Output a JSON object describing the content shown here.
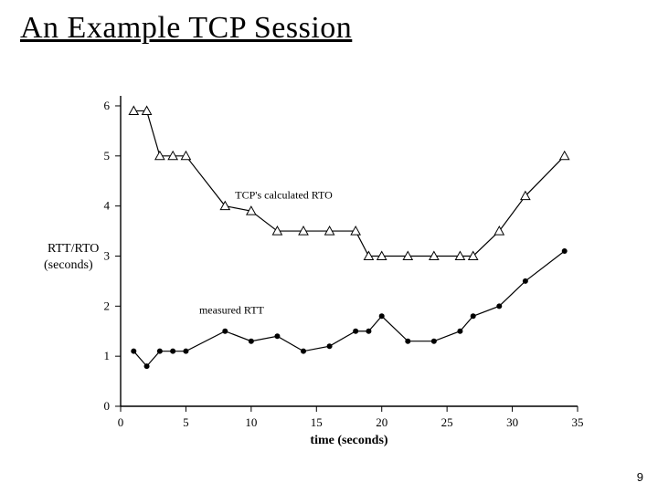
{
  "title": "An Example TCP Session",
  "page_number": "9",
  "chart": {
    "type": "line",
    "background_color": "#ffffff",
    "axis_color": "#000000",
    "line_color": "#000000",
    "line_width": 1.2,
    "xlabel": "time (seconds)",
    "ylabel_line1": "RTT/RTO",
    "ylabel_line2": "(seconds)",
    "label_fontsize": 14,
    "tick_fontsize": 13,
    "xlim": [
      0,
      35
    ],
    "ylim": [
      0,
      6.2
    ],
    "xticks": [
      0,
      5,
      10,
      15,
      20,
      25,
      30,
      35
    ],
    "yticks": [
      0,
      1,
      2,
      3,
      4,
      5,
      6
    ],
    "series": [
      {
        "name": "TCP's calculated RTO",
        "marker": "triangle",
        "marker_size": 5,
        "label_xy": [
          12.5,
          4.15
        ],
        "data": [
          [
            1,
            5.9
          ],
          [
            2,
            5.9
          ],
          [
            3,
            5.0
          ],
          [
            4,
            5.0
          ],
          [
            5,
            5.0
          ],
          [
            8,
            4.0
          ],
          [
            10,
            3.9
          ],
          [
            12,
            3.5
          ],
          [
            14,
            3.5
          ],
          [
            16,
            3.5
          ],
          [
            18,
            3.5
          ],
          [
            19,
            3.0
          ],
          [
            20,
            3.0
          ],
          [
            22,
            3.0
          ],
          [
            24,
            3.0
          ],
          [
            26,
            3.0
          ],
          [
            27,
            3.0
          ],
          [
            29,
            3.5
          ],
          [
            31,
            4.2
          ],
          [
            34,
            5.0
          ]
        ]
      },
      {
        "name": "measured RTT",
        "marker": "circle",
        "marker_size": 3,
        "label_xy": [
          8.5,
          1.85
        ],
        "data": [
          [
            1,
            1.1
          ],
          [
            2,
            0.8
          ],
          [
            3,
            1.1
          ],
          [
            4,
            1.1
          ],
          [
            5,
            1.1
          ],
          [
            8,
            1.5
          ],
          [
            10,
            1.3
          ],
          [
            12,
            1.4
          ],
          [
            14,
            1.1
          ],
          [
            16,
            1.2
          ],
          [
            18,
            1.5
          ],
          [
            19,
            1.5
          ],
          [
            20,
            1.8
          ],
          [
            22,
            1.3
          ],
          [
            24,
            1.3
          ],
          [
            26,
            1.5
          ],
          [
            27,
            1.8
          ],
          [
            29,
            2.0
          ],
          [
            31,
            2.5
          ],
          [
            34,
            3.1
          ]
        ]
      }
    ]
  }
}
